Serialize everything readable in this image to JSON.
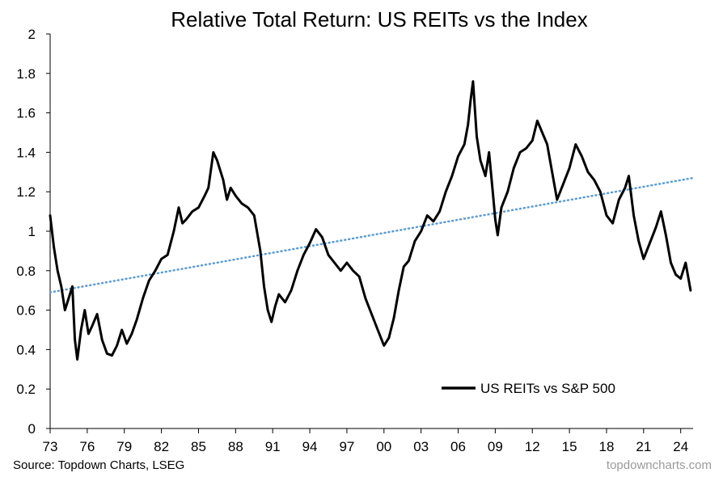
{
  "chart_data": {
    "type": "line",
    "title": "Relative Total Return: US REITs vs the Index",
    "xlabel": "",
    "ylabel": "",
    "xlim": [
      1973,
      2025
    ],
    "ylim": [
      0,
      2
    ],
    "y_ticks": [
      0,
      0.2,
      0.4,
      0.6,
      0.8,
      1,
      1.2,
      1.4,
      1.6,
      1.8,
      2
    ],
    "y_tick_labels": [
      "0",
      "0.2",
      "0.4",
      "0.6",
      "0.8",
      "1",
      "1.2",
      "1.4",
      "1.6",
      "1.8",
      "2"
    ],
    "x_ticks": [
      1973,
      1976,
      1979,
      1982,
      1985,
      1988,
      1991,
      1994,
      1997,
      2000,
      2003,
      2006,
      2009,
      2012,
      2015,
      2018,
      2021,
      2024
    ],
    "x_tick_labels": [
      "73",
      "76",
      "79",
      "82",
      "85",
      "88",
      "91",
      "94",
      "97",
      "00",
      "03",
      "06",
      "09",
      "12",
      "15",
      "18",
      "21",
      "24"
    ],
    "grid": false,
    "legend_position": "bottom-right",
    "series": [
      {
        "name": "US REITs vs S&P 500",
        "color": "#000000",
        "style": "solid",
        "points": [
          [
            1973.0,
            1.08
          ],
          [
            1973.3,
            0.92
          ],
          [
            1973.6,
            0.8
          ],
          [
            1973.9,
            0.72
          ],
          [
            1974.2,
            0.6
          ],
          [
            1974.5,
            0.66
          ],
          [
            1974.8,
            0.72
          ],
          [
            1975.0,
            0.45
          ],
          [
            1975.2,
            0.35
          ],
          [
            1975.5,
            0.5
          ],
          [
            1975.8,
            0.6
          ],
          [
            1976.1,
            0.48
          ],
          [
            1976.4,
            0.52
          ],
          [
            1976.8,
            0.58
          ],
          [
            1977.2,
            0.45
          ],
          [
            1977.6,
            0.38
          ],
          [
            1978.0,
            0.37
          ],
          [
            1978.4,
            0.42
          ],
          [
            1978.8,
            0.5
          ],
          [
            1979.2,
            0.43
          ],
          [
            1979.6,
            0.48
          ],
          [
            1980.0,
            0.55
          ],
          [
            1980.5,
            0.66
          ],
          [
            1981.0,
            0.75
          ],
          [
            1981.5,
            0.8
          ],
          [
            1982.0,
            0.86
          ],
          [
            1982.5,
            0.88
          ],
          [
            1983.0,
            1.0
          ],
          [
            1983.4,
            1.12
          ],
          [
            1983.7,
            1.04
          ],
          [
            1984.0,
            1.06
          ],
          [
            1984.5,
            1.1
          ],
          [
            1985.0,
            1.12
          ],
          [
            1985.5,
            1.18
          ],
          [
            1985.8,
            1.22
          ],
          [
            1986.2,
            1.4
          ],
          [
            1986.5,
            1.36
          ],
          [
            1987.0,
            1.26
          ],
          [
            1987.3,
            1.16
          ],
          [
            1987.6,
            1.22
          ],
          [
            1988.0,
            1.18
          ],
          [
            1988.5,
            1.14
          ],
          [
            1989.0,
            1.12
          ],
          [
            1989.5,
            1.08
          ],
          [
            1990.0,
            0.9
          ],
          [
            1990.3,
            0.72
          ],
          [
            1990.6,
            0.6
          ],
          [
            1990.9,
            0.54
          ],
          [
            1991.2,
            0.62
          ],
          [
            1991.5,
            0.68
          ],
          [
            1992.0,
            0.64
          ],
          [
            1992.5,
            0.7
          ],
          [
            1993.0,
            0.8
          ],
          [
            1993.5,
            0.88
          ],
          [
            1994.0,
            0.94
          ],
          [
            1994.5,
            1.01
          ],
          [
            1995.0,
            0.97
          ],
          [
            1995.5,
            0.88
          ],
          [
            1996.0,
            0.84
          ],
          [
            1996.5,
            0.8
          ],
          [
            1997.0,
            0.84
          ],
          [
            1997.5,
            0.8
          ],
          [
            1998.0,
            0.77
          ],
          [
            1998.5,
            0.66
          ],
          [
            1999.0,
            0.58
          ],
          [
            1999.5,
            0.5
          ],
          [
            2000.0,
            0.42
          ],
          [
            2000.4,
            0.46
          ],
          [
            2000.8,
            0.56
          ],
          [
            2001.2,
            0.7
          ],
          [
            2001.6,
            0.82
          ],
          [
            2002.0,
            0.85
          ],
          [
            2002.5,
            0.95
          ],
          [
            2003.0,
            1.0
          ],
          [
            2003.5,
            1.08
          ],
          [
            2004.0,
            1.05
          ],
          [
            2004.5,
            1.1
          ],
          [
            2005.0,
            1.2
          ],
          [
            2005.5,
            1.28
          ],
          [
            2006.0,
            1.38
          ],
          [
            2006.5,
            1.44
          ],
          [
            2006.8,
            1.54
          ],
          [
            2007.0,
            1.66
          ],
          [
            2007.2,
            1.76
          ],
          [
            2007.5,
            1.48
          ],
          [
            2007.8,
            1.36
          ],
          [
            2008.2,
            1.28
          ],
          [
            2008.5,
            1.4
          ],
          [
            2008.8,
            1.2
          ],
          [
            2009.0,
            1.06
          ],
          [
            2009.2,
            0.98
          ],
          [
            2009.5,
            1.12
          ],
          [
            2010.0,
            1.2
          ],
          [
            2010.5,
            1.32
          ],
          [
            2011.0,
            1.4
          ],
          [
            2011.5,
            1.42
          ],
          [
            2012.0,
            1.46
          ],
          [
            2012.4,
            1.56
          ],
          [
            2012.8,
            1.5
          ],
          [
            2013.2,
            1.44
          ],
          [
            2013.6,
            1.3
          ],
          [
            2014.0,
            1.16
          ],
          [
            2014.5,
            1.24
          ],
          [
            2015.0,
            1.32
          ],
          [
            2015.5,
            1.44
          ],
          [
            2016.0,
            1.38
          ],
          [
            2016.5,
            1.3
          ],
          [
            2017.0,
            1.26
          ],
          [
            2017.5,
            1.2
          ],
          [
            2018.0,
            1.08
          ],
          [
            2018.5,
            1.04
          ],
          [
            2019.0,
            1.16
          ],
          [
            2019.5,
            1.22
          ],
          [
            2019.8,
            1.28
          ],
          [
            2020.2,
            1.08
          ],
          [
            2020.6,
            0.95
          ],
          [
            2021.0,
            0.86
          ],
          [
            2021.5,
            0.94
          ],
          [
            2022.0,
            1.02
          ],
          [
            2022.4,
            1.1
          ],
          [
            2022.8,
            0.98
          ],
          [
            2023.2,
            0.84
          ],
          [
            2023.6,
            0.78
          ],
          [
            2024.0,
            0.76
          ],
          [
            2024.4,
            0.84
          ],
          [
            2024.8,
            0.7
          ]
        ]
      },
      {
        "name": "Trend",
        "color": "#5b9bd5",
        "style": "dotted",
        "points": [
          [
            1973.0,
            0.69
          ],
          [
            2025.0,
            1.27
          ]
        ]
      }
    ]
  },
  "footer": {
    "source": "Source: Topdown Charts, LSEG",
    "brand": "topdowncharts.com"
  }
}
